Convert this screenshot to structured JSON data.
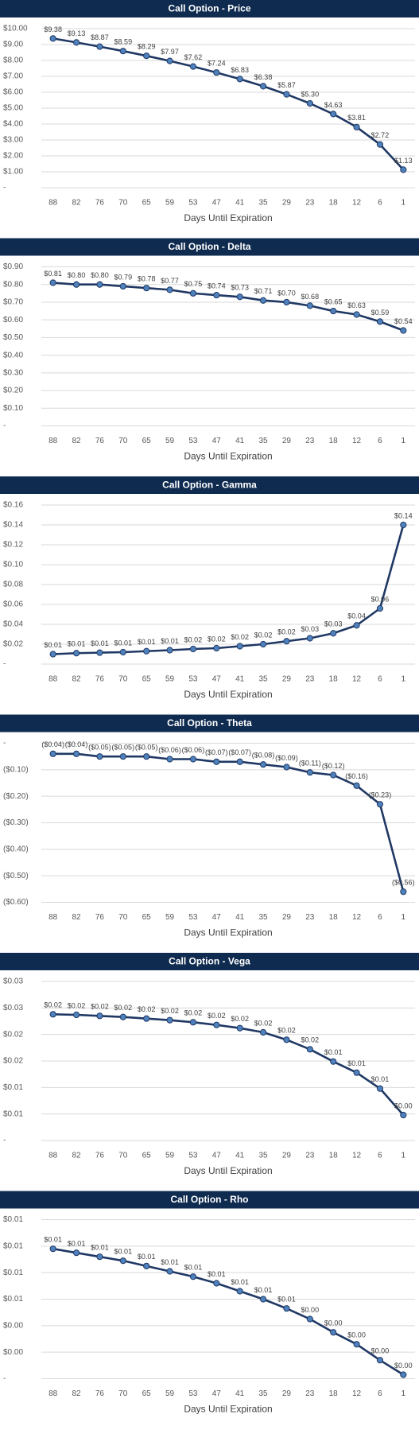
{
  "chart_data": [
    {
      "type": "line",
      "title": "Call Option - Price",
      "x_label": "Days Until Expiration",
      "categories": [
        "88",
        "82",
        "76",
        "70",
        "65",
        "59",
        "53",
        "47",
        "41",
        "35",
        "29",
        "23",
        "18",
        "12",
        "6",
        "1"
      ],
      "series": [
        {
          "color": "#1f3864",
          "marker_color": "#4f81bd",
          "values": [
            9.38,
            9.13,
            8.87,
            8.59,
            8.29,
            7.97,
            7.62,
            7.24,
            6.83,
            6.38,
            5.87,
            5.3,
            4.63,
            3.81,
            2.72,
            1.13
          ],
          "value_labels": [
            "$9.38",
            "$9.13",
            "$8.87",
            "$8.59",
            "$8.29",
            "$7.97",
            "$7.62",
            "$7.24",
            "$6.83",
            "$6.38",
            "$5.87",
            "$5.30",
            "$4.63",
            "$3.81",
            "$2.72",
            "$1.13"
          ]
        }
      ],
      "ylim": [
        0,
        10
      ],
      "yticks": [
        {
          "value": 0,
          "label": "-"
        },
        {
          "value": 1,
          "label": "$1.00"
        },
        {
          "value": 2,
          "label": "$2.00"
        },
        {
          "value": 3,
          "label": "$3.00"
        },
        {
          "value": 4,
          "label": "$4.00"
        },
        {
          "value": 5,
          "label": "$5.00"
        },
        {
          "value": 6,
          "label": "$6.00"
        },
        {
          "value": 7,
          "label": "$7.00"
        },
        {
          "value": 8,
          "label": "$8.00"
        },
        {
          "value": 9,
          "label": "$9.00"
        },
        {
          "value": 10,
          "label": "$10.00"
        }
      ],
      "grid": true
    },
    {
      "type": "line",
      "title": "Call Option - Delta",
      "x_label": "Days Until Expiration",
      "categories": [
        "88",
        "82",
        "76",
        "70",
        "65",
        "59",
        "53",
        "47",
        "41",
        "35",
        "29",
        "23",
        "18",
        "12",
        "6",
        "1"
      ],
      "series": [
        {
          "color": "#1f3864",
          "marker_color": "#4f81bd",
          "values": [
            0.81,
            0.8,
            0.8,
            0.79,
            0.78,
            0.77,
            0.75,
            0.74,
            0.73,
            0.71,
            0.7,
            0.68,
            0.65,
            0.63,
            0.59,
            0.54
          ],
          "value_labels": [
            "$0.81",
            "$0.80",
            "$0.80",
            "$0.79",
            "$0.78",
            "$0.77",
            "$0.75",
            "$0.74",
            "$0.73",
            "$0.71",
            "$0.70",
            "$0.68",
            "$0.65",
            "$0.63",
            "$0.59",
            "$0.54"
          ]
        }
      ],
      "ylim": [
        0,
        0.9
      ],
      "yticks": [
        {
          "value": 0,
          "label": "-"
        },
        {
          "value": 0.1,
          "label": "$0.10"
        },
        {
          "value": 0.2,
          "label": "$0.20"
        },
        {
          "value": 0.3,
          "label": "$0.30"
        },
        {
          "value": 0.4,
          "label": "$0.40"
        },
        {
          "value": 0.5,
          "label": "$0.50"
        },
        {
          "value": 0.6,
          "label": "$0.60"
        },
        {
          "value": 0.7,
          "label": "$0.70"
        },
        {
          "value": 0.8,
          "label": "$0.80"
        },
        {
          "value": 0.9,
          "label": "$0.90"
        }
      ],
      "grid": true
    },
    {
      "type": "line",
      "title": "Call Option - Gamma",
      "x_label": "Days Until Expiration",
      "categories": [
        "88",
        "82",
        "76",
        "70",
        "65",
        "59",
        "53",
        "47",
        "41",
        "35",
        "29",
        "23",
        "18",
        "12",
        "6",
        "1"
      ],
      "series": [
        {
          "color": "#1f3864",
          "marker_color": "#4f81bd",
          "values": [
            0.01,
            0.011,
            0.0115,
            0.012,
            0.013,
            0.014,
            0.0152,
            0.016,
            0.018,
            0.02,
            0.023,
            0.026,
            0.031,
            0.039,
            0.056,
            0.14
          ],
          "value_labels": [
            "$0.01",
            "$0.01",
            "$0.01",
            "$0.01",
            "$0.01",
            "$0.01",
            "$0.02",
            "$0.02",
            "$0.02",
            "$0.02",
            "$0.02",
            "$0.03",
            "$0.03",
            "$0.04",
            "$0.06",
            "$0.14"
          ]
        }
      ],
      "ylim": [
        0,
        0.16
      ],
      "yticks": [
        {
          "value": 0,
          "label": "-"
        },
        {
          "value": 0.02,
          "label": "$0.02"
        },
        {
          "value": 0.04,
          "label": "$0.04"
        },
        {
          "value": 0.06,
          "label": "$0.06"
        },
        {
          "value": 0.08,
          "label": "$0.08"
        },
        {
          "value": 0.1,
          "label": "$0.10"
        },
        {
          "value": 0.12,
          "label": "$0.12"
        },
        {
          "value": 0.14,
          "label": "$0.14"
        },
        {
          "value": 0.16,
          "label": "$0.16"
        }
      ],
      "grid": true
    },
    {
      "type": "line",
      "title": "Call Option - Theta",
      "x_label": "Days Until Expiration",
      "categories": [
        "88",
        "82",
        "76",
        "70",
        "65",
        "59",
        "53",
        "47",
        "41",
        "35",
        "29",
        "23",
        "18",
        "12",
        "6",
        "1"
      ],
      "series": [
        {
          "color": "#1f3864",
          "marker_color": "#4f81bd",
          "values": [
            -0.04,
            -0.04,
            -0.05,
            -0.05,
            -0.05,
            -0.06,
            -0.06,
            -0.07,
            -0.07,
            -0.08,
            -0.09,
            -0.11,
            -0.12,
            -0.16,
            -0.23,
            -0.56
          ],
          "value_labels": [
            "($0.04)",
            "($0.04)",
            "($0.05)",
            "($0.05)",
            "($0.05)",
            "($0.06)",
            "($0.06)",
            "($0.07)",
            "($0.07)",
            "($0.08)",
            "($0.09)",
            "($0.11)",
            "($0.12)",
            "($0.16)",
            "($0.23)",
            "($0.56)"
          ]
        }
      ],
      "ylim": [
        -0.6,
        0
      ],
      "yticks": [
        {
          "value": 0,
          "label": "-"
        },
        {
          "value": -0.1,
          "label": "($0.10)"
        },
        {
          "value": -0.2,
          "label": "($0.20)"
        },
        {
          "value": -0.3,
          "label": "($0.30)"
        },
        {
          "value": -0.4,
          "label": "($0.40)"
        },
        {
          "value": -0.5,
          "label": "($0.50)"
        },
        {
          "value": -0.6,
          "label": "($0.60)"
        }
      ],
      "grid": true
    },
    {
      "type": "line",
      "title": "Call Option - Vega",
      "x_label": "Days Until Expiration",
      "categories": [
        "88",
        "82",
        "76",
        "70",
        "65",
        "59",
        "53",
        "47",
        "41",
        "35",
        "29",
        "23",
        "18",
        "12",
        "6",
        "1"
      ],
      "series": [
        {
          "color": "#1f3864",
          "marker_color": "#4f81bd",
          "values": [
            0.0238,
            0.0237,
            0.0235,
            0.0233,
            0.023,
            0.0227,
            0.0223,
            0.0218,
            0.0212,
            0.0204,
            0.019,
            0.0172,
            0.0149,
            0.0128,
            0.0098,
            0.0048
          ],
          "value_labels": [
            "$0.02",
            "$0.02",
            "$0.02",
            "$0.02",
            "$0.02",
            "$0.02",
            "$0.02",
            "$0.02",
            "$0.02",
            "$0.02",
            "$0.02",
            "$0.02",
            "$0.01",
            "$0.01",
            "$0.01",
            "$0.00"
          ]
        }
      ],
      "ylim": [
        0,
        0.03
      ],
      "yticks": [
        {
          "value": 0,
          "label": "-"
        },
        {
          "value": 0.005,
          "label": "$0.01"
        },
        {
          "value": 0.01,
          "label": "$0.01"
        },
        {
          "value": 0.015,
          "label": "$0.02"
        },
        {
          "value": 0.02,
          "label": "$0.02"
        },
        {
          "value": 0.025,
          "label": "$0.03"
        },
        {
          "value": 0.03,
          "label": "$0.03"
        }
      ],
      "grid": true
    },
    {
      "type": "line",
      "title": "Call Option - Rho",
      "x_label": "Days Until Expiration",
      "categories": [
        "88",
        "82",
        "76",
        "70",
        "65",
        "59",
        "53",
        "47",
        "41",
        "35",
        "29",
        "23",
        "18",
        "12",
        "6",
        "1"
      ],
      "series": [
        {
          "color": "#1f3864",
          "marker_color": "#4f81bd",
          "values": [
            0.0098,
            0.0095,
            0.0092,
            0.0089,
            0.0085,
            0.0081,
            0.0077,
            0.0072,
            0.0066,
            0.006,
            0.0053,
            0.0045,
            0.0035,
            0.0026,
            0.0014,
            0.0003
          ],
          "value_labels": [
            "$0.01",
            "$0.01",
            "$0.01",
            "$0.01",
            "$0.01",
            "$0.01",
            "$0.01",
            "$0.01",
            "$0.01",
            "$0.01",
            "$0.01",
            "$0.00",
            "$0.00",
            "$0.00",
            "$0.00",
            "$0.00"
          ]
        }
      ],
      "ylim": [
        0,
        0.012
      ],
      "yticks": [
        {
          "value": 0,
          "label": "-"
        },
        {
          "value": 0.002,
          "label": "$0.00"
        },
        {
          "value": 0.004,
          "label": "$0.00"
        },
        {
          "value": 0.006,
          "label": "$0.01"
        },
        {
          "value": 0.008,
          "label": "$0.01"
        },
        {
          "value": 0.01,
          "label": "$0.01"
        },
        {
          "value": 0.012,
          "label": "$0.01"
        }
      ],
      "grid": true
    }
  ]
}
